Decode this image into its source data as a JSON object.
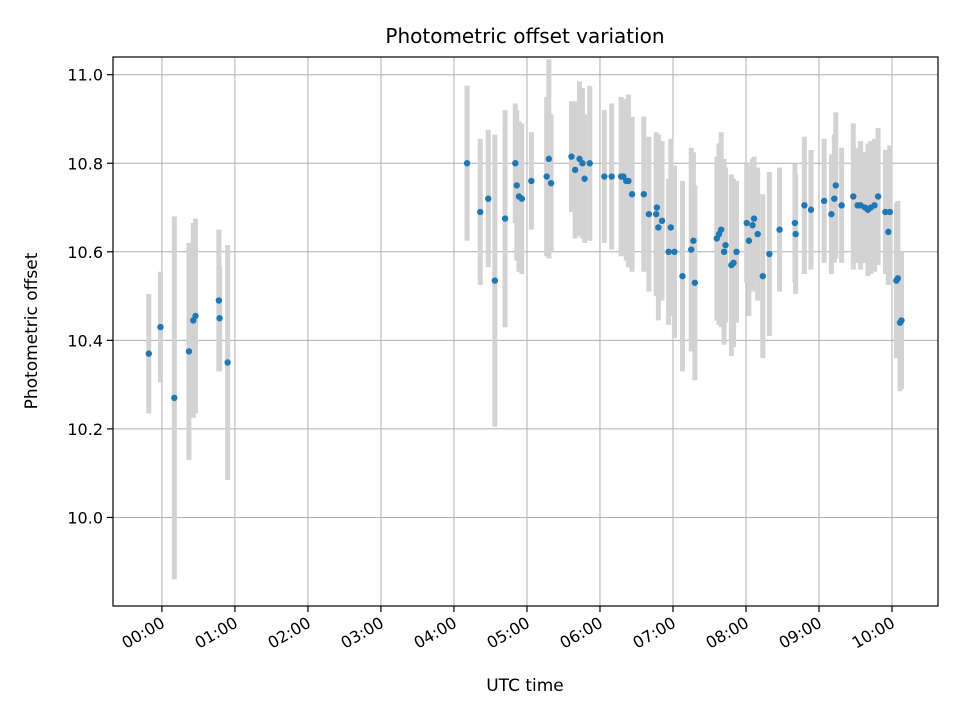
{
  "chart_data": {
    "type": "scatter",
    "title": "Photometric offset variation",
    "xlabel": "UTC time",
    "ylabel": "Photometric offset",
    "x_unit": "hours (UTC)",
    "xlim": [
      -0.67,
      10.63
    ],
    "ylim": [
      9.8,
      11.04
    ],
    "x_ticks": [
      0,
      1,
      2,
      3,
      4,
      5,
      6,
      7,
      8,
      9,
      10
    ],
    "x_tick_labels": [
      "00:00",
      "01:00",
      "02:00",
      "03:00",
      "04:00",
      "05:00",
      "06:00",
      "07:00",
      "08:00",
      "09:00",
      "10:00"
    ],
    "y_ticks": [
      10.0,
      10.2,
      10.4,
      10.6,
      10.8,
      11.0
    ],
    "y_tick_labels": [
      "10.0",
      "10.2",
      "10.4",
      "10.6",
      "10.8",
      "11.0"
    ],
    "grid": true,
    "colors": {
      "point": "#1f77b4",
      "errorbar": "#d3d3d3",
      "grid": "#b0b0b0"
    },
    "series": [
      {
        "x": [
          -0.18,
          -0.02,
          0.17,
          0.37,
          0.43,
          0.46,
          0.78,
          0.79,
          0.9,
          4.18,
          4.36,
          4.47,
          4.56,
          4.7,
          4.84,
          4.86,
          4.89,
          4.93,
          5.06,
          5.27,
          5.3,
          5.33,
          5.61,
          5.66,
          5.72,
          5.76,
          5.79,
          5.86,
          6.06,
          6.16,
          6.29,
          6.32,
          6.36,
          6.39,
          6.44,
          6.6,
          6.67,
          6.77,
          6.78,
          6.8,
          6.85,
          6.94,
          6.97,
          7.02,
          7.13,
          7.25,
          7.28,
          7.3,
          7.6,
          7.63,
          7.66,
          7.7,
          7.72,
          7.8,
          7.83,
          7.87,
          8.01,
          8.04,
          8.09,
          8.11,
          8.16,
          8.23,
          8.32,
          8.46,
          8.67,
          8.68,
          8.8,
          8.89,
          9.07,
          9.17,
          9.21,
          9.23,
          9.31,
          9.47,
          9.53,
          9.57,
          9.63,
          9.67,
          9.71,
          9.76,
          9.81,
          9.91,
          9.95,
          9.97,
          10.06,
          10.08,
          10.11,
          10.13
        ],
        "y": [
          10.37,
          10.43,
          10.27,
          10.375,
          10.445,
          10.455,
          10.49,
          10.45,
          10.35,
          10.8,
          10.69,
          10.72,
          10.535,
          10.675,
          10.8,
          10.75,
          10.725,
          10.72,
          10.76,
          10.77,
          10.81,
          10.755,
          10.815,
          10.785,
          10.81,
          10.8,
          10.765,
          10.8,
          10.77,
          10.77,
          10.77,
          10.77,
          10.76,
          10.76,
          10.73,
          10.73,
          10.685,
          10.685,
          10.7,
          10.655,
          10.67,
          10.6,
          10.655,
          10.6,
          10.545,
          10.605,
          10.625,
          10.53,
          10.63,
          10.64,
          10.65,
          10.6,
          10.615,
          10.57,
          10.575,
          10.6,
          10.665,
          10.625,
          10.66,
          10.675,
          10.64,
          10.545,
          10.595,
          10.65,
          10.665,
          10.64,
          10.705,
          10.695,
          10.715,
          10.685,
          10.72,
          10.75,
          10.705,
          10.725,
          10.705,
          10.705,
          10.7,
          10.695,
          10.7,
          10.705,
          10.725,
          10.69,
          10.645,
          10.69,
          10.535,
          10.54,
          10.44,
          10.445
        ],
        "yerr": [
          0.135,
          0.125,
          0.41,
          0.245,
          0.22,
          0.22,
          0.16,
          0.12,
          0.265,
          0.175,
          0.165,
          0.155,
          0.33,
          0.245,
          0.135,
          0.17,
          0.17,
          0.17,
          0.11,
          0.18,
          0.225,
          0.155,
          0.125,
          0.155,
          0.175,
          0.17,
          0.145,
          0.175,
          0.15,
          0.165,
          0.18,
          0.175,
          0.18,
          0.195,
          0.175,
          0.175,
          0.175,
          0.185,
          0.165,
          0.21,
          0.18,
          0.165,
          0.2,
          0.195,
          0.215,
          0.23,
          0.2,
          0.22,
          0.185,
          0.205,
          0.22,
          0.21,
          0.175,
          0.205,
          0.19,
          0.16,
          0.135,
          0.17,
          0.15,
          0.14,
          0.15,
          0.185,
          0.185,
          0.14,
          0.135,
          0.135,
          0.155,
          0.135,
          0.14,
          0.135,
          0.145,
          0.165,
          0.13,
          0.165,
          0.13,
          0.145,
          0.125,
          0.15,
          0.15,
          0.15,
          0.155,
          0.14,
          0.12,
          0.15,
          0.175,
          0.175,
          0.155,
          0.155
        ]
      }
    ]
  }
}
